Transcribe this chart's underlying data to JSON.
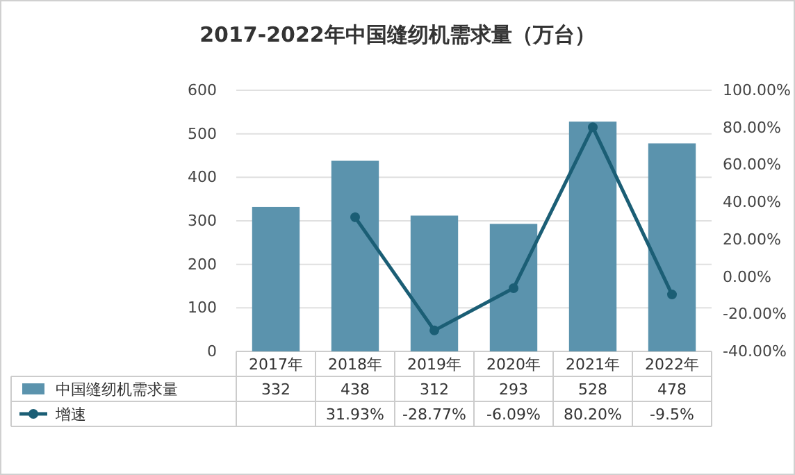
{
  "chart_data": {
    "type": "bar",
    "title": "2017-2022年中国缝纫机需求量（万台）",
    "categories": [
      "2017年",
      "2018年",
      "2019年",
      "2020年",
      "2021年",
      "2022年"
    ],
    "series": [
      {
        "name": "中国缝纫机需求量",
        "color": "#5b93ad",
        "values": [
          332,
          438,
          312,
          293,
          528,
          478
        ],
        "value_labels": [
          "332",
          "438",
          "312",
          "293",
          "528",
          "478"
        ]
      },
      {
        "name": "增速",
        "type": "line",
        "axis": "y2",
        "color": "#1b5e75",
        "marker": "circle",
        "values": [
          null,
          31.93,
          -28.77,
          -6.09,
          80.2,
          -9.5
        ],
        "value_labels": [
          null,
          "31.93%",
          "-28.77%",
          "-6.09%",
          "80.20%",
          "-9.5%"
        ]
      }
    ],
    "ylim": [
      0,
      600
    ],
    "yticks": [
      0,
      100,
      200,
      300,
      400,
      500,
      600
    ],
    "y2lim": [
      -40,
      100
    ],
    "y2ticks": [
      {
        "value": -40,
        "label": "-40.00%"
      },
      {
        "value": -20,
        "label": "-20.00%"
      },
      {
        "value": 0,
        "label": "0.00%"
      },
      {
        "value": 20,
        "label": "20.00%"
      },
      {
        "value": 40,
        "label": "40.00%"
      },
      {
        "value": 60,
        "label": "60.00%"
      },
      {
        "value": 80,
        "label": "80.00%"
      },
      {
        "value": 100,
        "label": "100.00%"
      }
    ],
    "grid": "y",
    "legend": "bottom"
  }
}
